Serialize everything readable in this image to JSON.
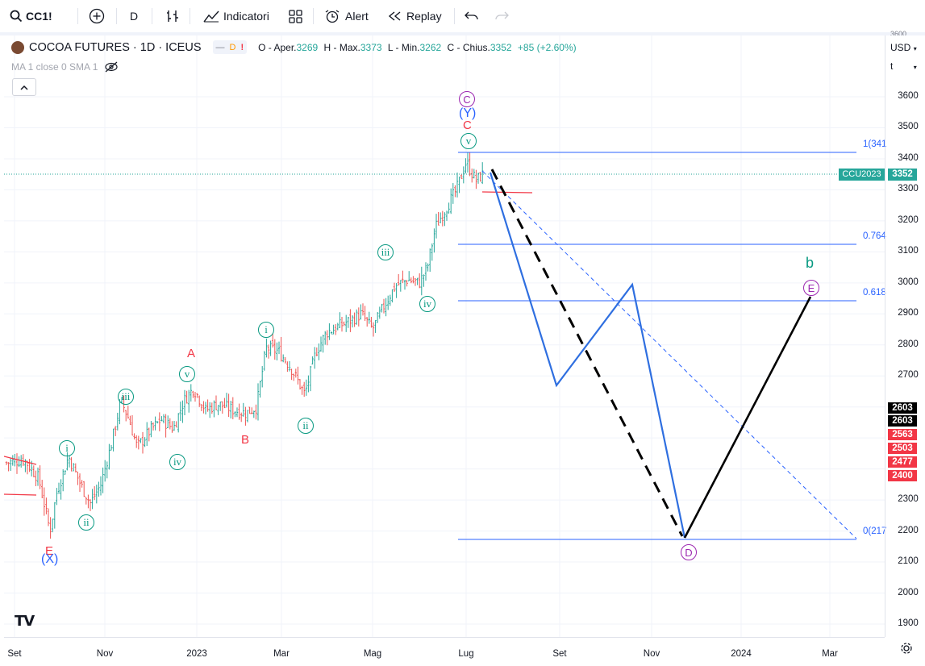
{
  "toolbar": {
    "symbol": "CC1!",
    "interval": "D",
    "indicators_label": "Indicatori",
    "alert_label": "Alert",
    "replay_label": "Replay"
  },
  "legend": {
    "title": "COCOA FUTURES · 1D · ICEUS",
    "badge_dash": "—",
    "badge_d": "D",
    "badge_warn": "!",
    "o_label": "O - Aper.",
    "o": "3269",
    "h_label": "H - Max.",
    "h": "3373",
    "l_label": "L - Min.",
    "l": "3262",
    "c_label": "C - Chius.",
    "c": "3352",
    "change": "+85 (+2.60%)",
    "ma": "MA 1 close 0 SMA 1"
  },
  "price_axis": {
    "currency": "USD",
    "scale": "t",
    "top_cut": "3600",
    "labels": [
      "3600",
      "3500",
      "3400",
      "3300",
      "3200",
      "3100",
      "3000",
      "2900",
      "2800",
      "2700",
      "2300",
      "2200",
      "2100",
      "2000",
      "1900"
    ],
    "ccu_tag": "CCU2023",
    "last_price": "3352",
    "tags": [
      {
        "text": "2603",
        "bg": "#000000"
      },
      {
        "text": "2603",
        "bg": "#000000"
      },
      {
        "text": "2563",
        "bg": "#f23645"
      },
      {
        "text": "2503",
        "bg": "#f23645"
      },
      {
        "text": "2477",
        "bg": "#f23645"
      },
      {
        "text": "2400",
        "bg": "#f23645"
      }
    ]
  },
  "time_axis": [
    "Set",
    "Nov",
    "2023",
    "Mar",
    "Mag",
    "Lug",
    "Set",
    "Nov",
    "2024",
    "Mar"
  ],
  "fib_labels": [
    "1(341",
    "0.764",
    "0.618",
    "0(217"
  ],
  "wave_labels": {
    "A": "A",
    "B": "B",
    "C": "C",
    "E_red": "E",
    "X": "(X)",
    "Y": "(Y)",
    "b": "b",
    "circ_C": "C",
    "circ_D": "D",
    "circ_E": "E",
    "i1": "i",
    "ii1": "ii",
    "iii1": "iii",
    "iv1": "iv",
    "v1": "v",
    "i2": "i",
    "ii2": "ii",
    "iii2": "iii",
    "iv2": "iv",
    "v2": "v"
  },
  "colors": {
    "up": "#26a69a",
    "down": "#ef5350",
    "fib": "#2962ff",
    "elliott_green": "#089981",
    "elliott_purple": "#9c27b0",
    "red": "#f23645"
  },
  "logo": "TV",
  "chart_data": {
    "type": "candlestick",
    "title": "COCOA FUTURES · 1D · ICEUS",
    "x": [
      "Set",
      "Nov",
      "2023",
      "Mar",
      "Mag",
      "Lug",
      "Set",
      "Nov",
      "2024",
      "Mar"
    ],
    "ylim": [
      1850,
      3650
    ],
    "last": 3352,
    "ohlc_last": {
      "open": 3269,
      "high": 3373,
      "low": 3262,
      "close": 3352,
      "change": 85,
      "change_pct": 2.6
    },
    "fib_levels": [
      {
        "label": "1(341",
        "value": 3415
      },
      {
        "label": "0.764",
        "value": 3125
      },
      {
        "label": "0.618",
        "value": 2944
      },
      {
        "label": "0(217",
        "value": 2172
      }
    ],
    "projection_points": [
      {
        "label": "C",
        "value": 3415
      },
      {
        "label": "D",
        "value": 2172
      },
      {
        "label": "E",
        "value": 2944
      }
    ]
  }
}
